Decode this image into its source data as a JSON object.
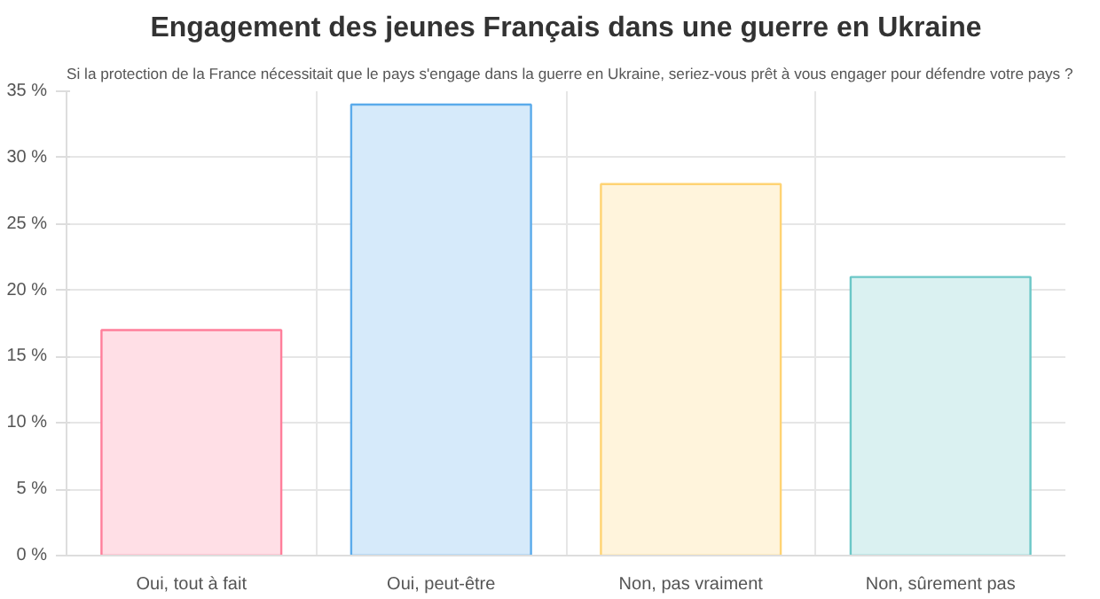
{
  "chart_data": {
    "type": "bar",
    "title": "Engagement des jeunes Français dans une guerre en Ukraine",
    "subtitle": "Si la protection de la France nécessitait que le pays s'engage dans la guerre en Ukraine, seriez-vous prêt à vous engager pour défendre votre pays ?",
    "categories": [
      "Oui, tout à fait",
      "Oui, peut-être",
      "Non, pas vraiment",
      "Non, sûrement pas"
    ],
    "values": [
      17,
      34,
      28,
      21
    ],
    "colors": [
      "#ffdfe6",
      "#d6eafa",
      "#fff4dc",
      "#daf1f1"
    ],
    "ylim": [
      0,
      35
    ],
    "yticks": [
      {
        "value": 0,
        "label": "0 %"
      },
      {
        "value": 5,
        "label": "5 %"
      },
      {
        "value": 10,
        "label": "10 %"
      },
      {
        "value": 15,
        "label": "15 %"
      },
      {
        "value": 20,
        "label": "20 %"
      },
      {
        "value": 25,
        "label": "25 %"
      },
      {
        "value": 30,
        "label": "30 %"
      },
      {
        "value": 35,
        "label": "35 %"
      }
    ],
    "grid": true
  }
}
